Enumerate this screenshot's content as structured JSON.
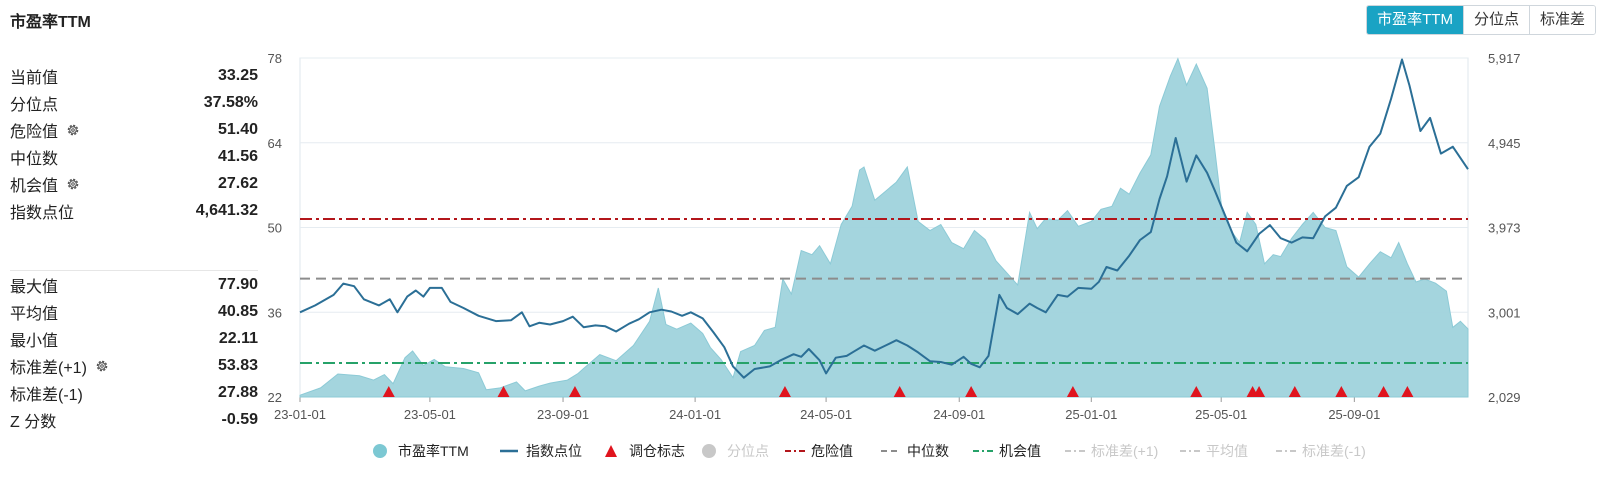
{
  "header": {
    "title": "市盈率TTM"
  },
  "tabs": [
    {
      "label": "市盈率TTM",
      "active": true
    },
    {
      "label": "分位点",
      "active": false
    },
    {
      "label": "标准差",
      "active": false
    }
  ],
  "stats_top": [
    {
      "label": "当前值",
      "value": "33.25",
      "gear": false
    },
    {
      "label": "分位点",
      "value": "37.58%",
      "gear": false
    },
    {
      "label": "危险值",
      "value": "51.40",
      "gear": true
    },
    {
      "label": "中位数",
      "value": "41.56",
      "gear": false
    },
    {
      "label": "机会值",
      "value": "27.62",
      "gear": true
    },
    {
      "label": "指数点位",
      "value": "4,641.32",
      "gear": false
    }
  ],
  "stats_bottom": [
    {
      "label": "最大值",
      "value": "77.90",
      "gear": false
    },
    {
      "label": "平均值",
      "value": "40.85",
      "gear": false
    },
    {
      "label": "最小值",
      "value": "22.11",
      "gear": false
    },
    {
      "label": "标准差(+1)",
      "value": "53.83",
      "gear": true
    },
    {
      "label": "标准差(-1)",
      "value": "27.88",
      "gear": false
    },
    {
      "label": "Z 分数",
      "value": "-0.59",
      "gear": false
    }
  ],
  "colors": {
    "pe_fill": "#9fd3dc",
    "pe_stroke": "#8ccad6",
    "index_line": "#2b6f96",
    "marker": "#e0141e",
    "danger": "#b3161b",
    "median": "#8c8c8c",
    "opportunity": "#26a269",
    "disabled": "#c8c8c8",
    "tab_active": "#1aa3c4"
  },
  "chart_data": {
    "type": "area",
    "x_ticks": [
      "23-01-01",
      "23-05-01",
      "23-09-01",
      "24-01-01",
      "24-05-01",
      "24-09-01",
      "25-01-01",
      "25-05-01",
      "25-09-01"
    ],
    "y_left_ticks": [
      "22",
      "36",
      "50",
      "64",
      "78"
    ],
    "y_right_ticks": [
      "2,029",
      "3,001",
      "3,973",
      "4,945",
      "5,917"
    ],
    "y_left_range": [
      22,
      78
    ],
    "y_right_range": [
      2029,
      5917
    ],
    "x_range": [
      "2023-01-01",
      "2025-12-15"
    ],
    "series": [
      {
        "name": "市盈率TTM",
        "axis": "left",
        "type": "area",
        "points": [
          [
            "2023-01-01",
            22.3
          ],
          [
            "2023-01-20",
            23.5
          ],
          [
            "2023-02-05",
            25.8
          ],
          [
            "2023-02-25",
            25.5
          ],
          [
            "2023-03-10",
            24.8
          ],
          [
            "2023-03-20",
            25.7
          ],
          [
            "2023-03-28",
            24.2
          ],
          [
            "2023-04-08",
            28.5
          ],
          [
            "2023-04-15",
            29.6
          ],
          [
            "2023-04-25",
            27.2
          ],
          [
            "2023-05-05",
            28.2
          ],
          [
            "2023-05-15",
            27.0
          ],
          [
            "2023-06-01",
            26.7
          ],
          [
            "2023-06-15",
            26.0
          ],
          [
            "2023-06-22",
            23.2
          ],
          [
            "2023-07-05",
            23.5
          ],
          [
            "2023-07-20",
            24.5
          ],
          [
            "2023-07-28",
            23.0
          ],
          [
            "2023-08-10",
            23.8
          ],
          [
            "2023-08-20",
            24.3
          ],
          [
            "2023-09-05",
            24.8
          ],
          [
            "2023-09-15",
            25.9
          ],
          [
            "2023-09-20",
            26.7
          ],
          [
            "2023-10-05",
            29.0
          ],
          [
            "2023-10-20",
            28.0
          ],
          [
            "2023-11-05",
            30.5
          ],
          [
            "2023-11-20",
            34.5
          ],
          [
            "2023-11-28",
            40.0
          ],
          [
            "2023-12-05",
            34.0
          ],
          [
            "2023-12-15",
            33.2
          ],
          [
            "2023-12-28",
            34.2
          ],
          [
            "2024-01-08",
            32.5
          ],
          [
            "2024-01-15",
            30.2
          ],
          [
            "2024-01-25",
            28.2
          ],
          [
            "2024-02-05",
            25.2
          ],
          [
            "2024-02-12",
            29.5
          ],
          [
            "2024-02-25",
            30.5
          ],
          [
            "2024-03-05",
            33.0
          ],
          [
            "2024-03-15",
            33.5
          ],
          [
            "2024-03-22",
            41.5
          ],
          [
            "2024-03-30",
            39.0
          ],
          [
            "2024-04-08",
            46.2
          ],
          [
            "2024-04-18",
            45.5
          ],
          [
            "2024-04-25",
            47.0
          ],
          [
            "2024-05-05",
            44.0
          ],
          [
            "2024-05-15",
            50.5
          ],
          [
            "2024-05-25",
            53.5
          ],
          [
            "2024-06-01",
            59.5
          ],
          [
            "2024-06-05",
            60.0
          ],
          [
            "2024-06-15",
            54.5
          ],
          [
            "2024-06-25",
            56.0
          ],
          [
            "2024-07-05",
            57.5
          ],
          [
            "2024-07-15",
            60.0
          ],
          [
            "2024-07-25",
            51.0
          ],
          [
            "2024-08-05",
            49.5
          ],
          [
            "2024-08-15",
            50.5
          ],
          [
            "2024-08-25",
            47.5
          ],
          [
            "2024-09-05",
            46.5
          ],
          [
            "2024-09-15",
            49.5
          ],
          [
            "2024-09-25",
            48.0
          ],
          [
            "2024-10-05",
            44.5
          ],
          [
            "2024-10-15",
            42.5
          ],
          [
            "2024-10-25",
            40.5
          ],
          [
            "2024-11-05",
            52.5
          ],
          [
            "2024-11-12",
            49.8
          ],
          [
            "2024-11-20",
            51.5
          ],
          [
            "2024-12-01",
            51.2
          ],
          [
            "2024-12-10",
            52.8
          ],
          [
            "2024-12-20",
            50.2
          ],
          [
            "2025-01-01",
            51.0
          ],
          [
            "2025-01-10",
            53.0
          ],
          [
            "2025-01-20",
            53.5
          ],
          [
            "2025-01-28",
            56.5
          ],
          [
            "2025-02-05",
            55.5
          ],
          [
            "2025-02-15",
            59.0
          ],
          [
            "2025-02-25",
            62.0
          ],
          [
            "2025-03-05",
            70.0
          ],
          [
            "2025-03-15",
            75.0
          ],
          [
            "2025-03-22",
            77.9
          ],
          [
            "2025-03-30",
            73.5
          ],
          [
            "2025-04-08",
            77.0
          ],
          [
            "2025-04-18",
            73.0
          ],
          [
            "2025-04-25",
            63.0
          ],
          [
            "2025-05-02",
            52.5
          ],
          [
            "2025-05-10",
            49.5
          ],
          [
            "2025-05-18",
            47.5
          ],
          [
            "2025-05-25",
            52.5
          ],
          [
            "2025-06-02",
            50.5
          ],
          [
            "2025-06-10",
            44.0
          ],
          [
            "2025-06-18",
            45.5
          ],
          [
            "2025-06-25",
            45.2
          ],
          [
            "2025-07-05",
            48.2
          ],
          [
            "2025-07-15",
            50.5
          ],
          [
            "2025-07-25",
            52.5
          ],
          [
            "2025-08-05",
            50.0
          ],
          [
            "2025-08-15",
            49.5
          ],
          [
            "2025-08-25",
            43.5
          ],
          [
            "2025-09-05",
            41.8
          ],
          [
            "2025-09-15",
            44.0
          ],
          [
            "2025-09-25",
            46.0
          ],
          [
            "2025-10-05",
            45.0
          ],
          [
            "2025-10-12",
            47.5
          ],
          [
            "2025-10-20",
            44.0
          ],
          [
            "2025-10-28",
            41.0
          ],
          [
            "2025-11-05",
            41.5
          ],
          [
            "2025-11-15",
            40.8
          ],
          [
            "2025-11-25",
            39.5
          ],
          [
            "2025-12-01",
            33.5
          ],
          [
            "2025-12-08",
            34.5
          ],
          [
            "2025-12-15",
            33.25
          ]
        ]
      },
      {
        "name": "指数点位",
        "axis": "right",
        "type": "line",
        "points": [
          [
            "2023-01-01",
            3000
          ],
          [
            "2023-01-15",
            3080
          ],
          [
            "2023-02-01",
            3200
          ],
          [
            "2023-02-10",
            3330
          ],
          [
            "2023-02-20",
            3300
          ],
          [
            "2023-03-01",
            3150
          ],
          [
            "2023-03-15",
            3080
          ],
          [
            "2023-03-25",
            3150
          ],
          [
            "2023-04-01",
            3000
          ],
          [
            "2023-04-10",
            3180
          ],
          [
            "2023-04-18",
            3250
          ],
          [
            "2023-04-25",
            3180
          ],
          [
            "2023-05-01",
            3280
          ],
          [
            "2023-05-12",
            3280
          ],
          [
            "2023-05-20",
            3120
          ],
          [
            "2023-06-01",
            3050
          ],
          [
            "2023-06-15",
            2960
          ],
          [
            "2023-07-01",
            2900
          ],
          [
            "2023-07-15",
            2910
          ],
          [
            "2023-07-25",
            3000
          ],
          [
            "2023-08-01",
            2840
          ],
          [
            "2023-08-10",
            2880
          ],
          [
            "2023-08-20",
            2860
          ],
          [
            "2023-09-01",
            2900
          ],
          [
            "2023-09-10",
            2950
          ],
          [
            "2023-09-20",
            2830
          ],
          [
            "2023-10-01",
            2850
          ],
          [
            "2023-10-10",
            2840
          ],
          [
            "2023-10-20",
            2780
          ],
          [
            "2023-11-01",
            2870
          ],
          [
            "2023-11-10",
            2920
          ],
          [
            "2023-11-20",
            3000
          ],
          [
            "2023-12-01",
            3030
          ],
          [
            "2023-12-10",
            3010
          ],
          [
            "2023-12-20",
            2960
          ],
          [
            "2023-12-28",
            3000
          ],
          [
            "2024-01-08",
            2930
          ],
          [
            "2024-01-18",
            2770
          ],
          [
            "2024-01-28",
            2600
          ],
          [
            "2024-02-05",
            2380
          ],
          [
            "2024-02-15",
            2250
          ],
          [
            "2024-02-25",
            2350
          ],
          [
            "2024-03-10",
            2380
          ],
          [
            "2024-03-20",
            2450
          ],
          [
            "2024-04-01",
            2520
          ],
          [
            "2024-04-08",
            2490
          ],
          [
            "2024-04-15",
            2580
          ],
          [
            "2024-04-25",
            2450
          ],
          [
            "2024-05-01",
            2300
          ],
          [
            "2024-05-10",
            2480
          ],
          [
            "2024-05-20",
            2500
          ],
          [
            "2024-05-28",
            2560
          ],
          [
            "2024-06-05",
            2620
          ],
          [
            "2024-06-15",
            2560
          ],
          [
            "2024-06-25",
            2620
          ],
          [
            "2024-07-05",
            2680
          ],
          [
            "2024-07-15",
            2620
          ],
          [
            "2024-07-25",
            2540
          ],
          [
            "2024-08-05",
            2440
          ],
          [
            "2024-08-15",
            2430
          ],
          [
            "2024-08-25",
            2400
          ],
          [
            "2024-09-05",
            2490
          ],
          [
            "2024-09-12",
            2410
          ],
          [
            "2024-09-20",
            2370
          ],
          [
            "2024-09-28",
            2500
          ],
          [
            "2024-10-08",
            3200
          ],
          [
            "2024-10-15",
            3050
          ],
          [
            "2024-10-25",
            2980
          ],
          [
            "2024-11-05",
            3100
          ],
          [
            "2024-11-12",
            3050
          ],
          [
            "2024-11-20",
            3000
          ],
          [
            "2024-12-01",
            3200
          ],
          [
            "2024-12-10",
            3180
          ],
          [
            "2024-12-20",
            3280
          ],
          [
            "2025-01-01",
            3270
          ],
          [
            "2025-01-08",
            3350
          ],
          [
            "2025-01-15",
            3520
          ],
          [
            "2025-01-25",
            3480
          ],
          [
            "2025-02-05",
            3650
          ],
          [
            "2025-02-15",
            3830
          ],
          [
            "2025-02-25",
            3920
          ],
          [
            "2025-03-05",
            4300
          ],
          [
            "2025-03-12",
            4560
          ],
          [
            "2025-03-20",
            5000
          ],
          [
            "2025-03-30",
            4500
          ],
          [
            "2025-04-08",
            4800
          ],
          [
            "2025-04-18",
            4600
          ],
          [
            "2025-04-25",
            4400
          ],
          [
            "2025-05-05",
            4100
          ],
          [
            "2025-05-15",
            3800
          ],
          [
            "2025-05-25",
            3700
          ],
          [
            "2025-06-05",
            3900
          ],
          [
            "2025-06-15",
            4000
          ],
          [
            "2025-06-25",
            3850
          ],
          [
            "2025-07-05",
            3800
          ],
          [
            "2025-07-15",
            3860
          ],
          [
            "2025-07-25",
            3850
          ],
          [
            "2025-08-05",
            4100
          ],
          [
            "2025-08-15",
            4200
          ],
          [
            "2025-08-25",
            4450
          ],
          [
            "2025-09-05",
            4550
          ],
          [
            "2025-09-15",
            4900
          ],
          [
            "2025-09-25",
            5050
          ],
          [
            "2025-10-05",
            5450
          ],
          [
            "2025-10-15",
            5900
          ],
          [
            "2025-10-22",
            5600
          ],
          [
            "2025-11-01",
            5080
          ],
          [
            "2025-11-10",
            5230
          ],
          [
            "2025-11-20",
            4820
          ],
          [
            "2025-12-01",
            4900
          ],
          [
            "2025-12-15",
            4641.32
          ]
        ]
      }
    ],
    "reference_lines": [
      {
        "name": "危险值",
        "value": 51.4,
        "style": "dash-dot",
        "color": "#b3161b"
      },
      {
        "name": "中位数",
        "value": 41.56,
        "style": "dash",
        "color": "#8c8c8c"
      },
      {
        "name": "机会值",
        "value": 27.62,
        "style": "dash-dot",
        "color": "#26a269"
      }
    ],
    "rebalance_markers": [
      "2023-03-24",
      "2023-07-08",
      "2023-09-12",
      "2024-03-24",
      "2024-07-08",
      "2024-09-12",
      "2024-12-15",
      "2025-04-08",
      "2025-05-30",
      "2025-06-05",
      "2025-07-08",
      "2025-08-20",
      "2025-09-28",
      "2025-10-20"
    ],
    "legend": [
      {
        "name": "市盈率TTM",
        "shape": "circle",
        "color": "#7cc8d3",
        "enabled": true
      },
      {
        "name": "指数点位",
        "shape": "line",
        "color": "#2b6f96",
        "enabled": true
      },
      {
        "name": "调仓标志",
        "shape": "triangle",
        "color": "#e0141e",
        "enabled": true
      },
      {
        "name": "分位点",
        "shape": "circle",
        "color": "#c8c8c8",
        "enabled": false
      },
      {
        "name": "危险值",
        "shape": "dashdot",
        "color": "#b3161b",
        "enabled": true
      },
      {
        "name": "中位数",
        "shape": "dash",
        "color": "#8c8c8c",
        "enabled": true
      },
      {
        "name": "机会值",
        "shape": "dashdot",
        "color": "#26a269",
        "enabled": true
      },
      {
        "name": "标准差(+1)",
        "shape": "dashdot",
        "color": "#c8c8c8",
        "enabled": false
      },
      {
        "name": "平均值",
        "shape": "dashdot",
        "color": "#c8c8c8",
        "enabled": false
      },
      {
        "name": "标准差(-1)",
        "shape": "dashdot",
        "color": "#c8c8c8",
        "enabled": false
      }
    ],
    "legend_position": "bottom",
    "grid": true
  }
}
